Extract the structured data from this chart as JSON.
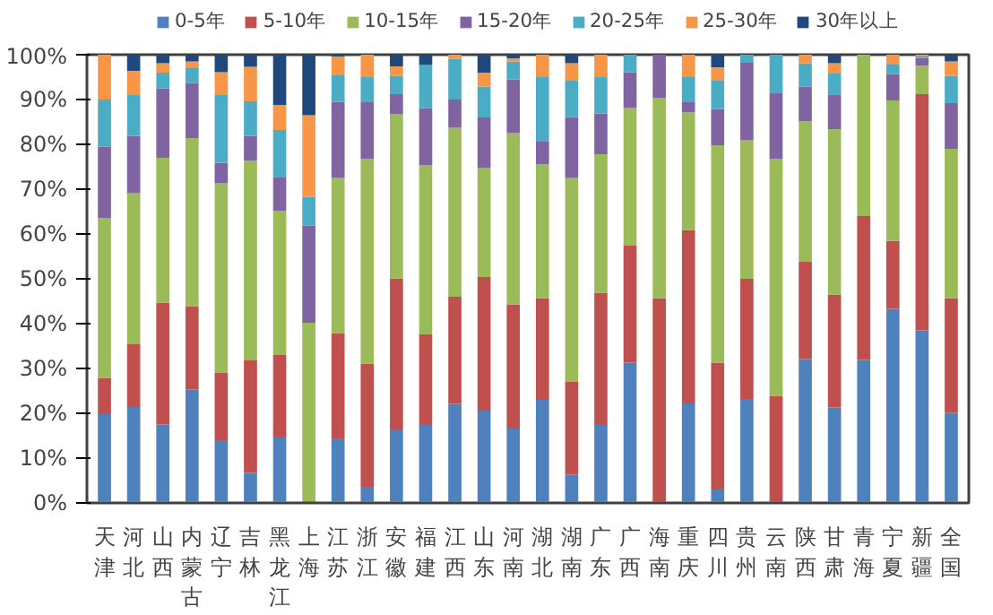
{
  "chart_data": {
    "type": "bar",
    "stacked": true,
    "legend": "top",
    "grid": false,
    "categories": [
      "天津",
      "河北",
      "山西",
      "内蒙古",
      "辽宁",
      "吉林",
      "黑龙江",
      "上海",
      "江苏",
      "浙江",
      "安徽",
      "福建",
      "江西",
      "山东",
      "河南",
      "湖北",
      "湖南",
      "广东",
      "广西",
      "海南",
      "重庆",
      "四川",
      "贵州",
      "云南",
      "陕西",
      "甘肃",
      "青海",
      "宁夏",
      "新疆",
      "全国"
    ],
    "ylim": [
      0,
      100
    ],
    "yticks": [
      {
        "value": 0,
        "label": "0%"
      },
      {
        "value": 10,
        "label": "10%"
      },
      {
        "value": 20,
        "label": "20%"
      },
      {
        "value": 30,
        "label": "30%"
      },
      {
        "value": 40,
        "label": "40%"
      },
      {
        "value": 50,
        "label": "50%"
      },
      {
        "value": 60,
        "label": "60%"
      },
      {
        "value": 70,
        "label": "70%"
      },
      {
        "value": 80,
        "label": "80%"
      },
      {
        "value": 90,
        "label": "90%"
      },
      {
        "value": 100,
        "label": "100%"
      }
    ],
    "series": [
      {
        "name": "0-5年",
        "color": "#4f81bd",
        "values": [
          19.8,
          21.4,
          17.5,
          25.3,
          14.0,
          6.7,
          14.8,
          0,
          14.4,
          3.6,
          16.4,
          17.4,
          22.1,
          20.6,
          16.6,
          23.0,
          6.3,
          17.4,
          31.3,
          0,
          22.2,
          3.0,
          23.2,
          0,
          32.1,
          21.3,
          31.9,
          43.3,
          38.5,
          20.1
        ]
      },
      {
        "name": "5-10年",
        "color": "#c0504d",
        "values": [
          8.1,
          14.0,
          27.2,
          18.6,
          15.0,
          25.1,
          18.2,
          0.4,
          23.5,
          27.5,
          33.7,
          20.2,
          23.9,
          29.8,
          27.7,
          22.7,
          20.7,
          29.5,
          26.1,
          45.7,
          38.7,
          28.3,
          26.8,
          23.9,
          21.7,
          25.2,
          32.1,
          15.2,
          52.7,
          25.6
        ]
      },
      {
        "name": "10-15年",
        "color": "#9bbb59",
        "values": [
          35.7,
          33.7,
          32.3,
          37.5,
          42.3,
          44.6,
          32.2,
          39.8,
          34.6,
          45.7,
          36.6,
          37.7,
          37.7,
          24.3,
          38.2,
          29.9,
          45.5,
          30.9,
          30.7,
          44.6,
          26.3,
          48.5,
          30.9,
          52.9,
          31.4,
          36.9,
          36.0,
          31.3,
          6.4,
          33.3
        ]
      },
      {
        "name": "15-20年",
        "color": "#8064a2",
        "values": [
          15.9,
          12.8,
          15.5,
          12.3,
          4.6,
          5.5,
          7.4,
          21.7,
          17.0,
          12.6,
          4.5,
          12.8,
          6.3,
          11.3,
          12.0,
          5.0,
          13.6,
          9.1,
          8.0,
          9.7,
          2.2,
          8.1,
          17.3,
          14.6,
          7.7,
          7.6,
          0,
          5.9,
          1.7,
          10.2
        ]
      },
      {
        "name": "20-25年",
        "color": "#4bacc6",
        "values": [
          10.5,
          9.1,
          3.5,
          3.3,
          15.1,
          7.7,
          10.6,
          6.4,
          5.9,
          5.6,
          4.1,
          9.6,
          9.1,
          6.9,
          4.0,
          14.4,
          8.1,
          8.1,
          3.9,
          0,
          5.6,
          6.3,
          1.8,
          8.6,
          5.2,
          4.8,
          0,
          2.1,
          0.4,
          6.1
        ]
      },
      {
        "name": "25-30年",
        "color": "#f79646",
        "values": [
          10.0,
          5.4,
          2.1,
          1.5,
          5.1,
          7.7,
          5.6,
          18.2,
          4.2,
          5.0,
          2.1,
          0,
          0.9,
          3.1,
          0.7,
          5.0,
          3.9,
          5.0,
          0,
          0,
          5.0,
          3.0,
          0,
          0,
          1.9,
          2.3,
          0,
          2.2,
          0.3,
          3.2
        ]
      },
      {
        "name": "30年以上",
        "color": "#1f497d",
        "values": [
          0,
          3.6,
          1.9,
          1.5,
          3.9,
          2.7,
          11.2,
          13.5,
          0.4,
          0,
          2.6,
          2.3,
          0,
          4.0,
          0.8,
          0,
          1.9,
          0,
          0,
          0,
          0,
          2.8,
          0,
          0,
          0,
          1.9,
          0,
          0,
          0,
          1.5
        ]
      }
    ]
  }
}
